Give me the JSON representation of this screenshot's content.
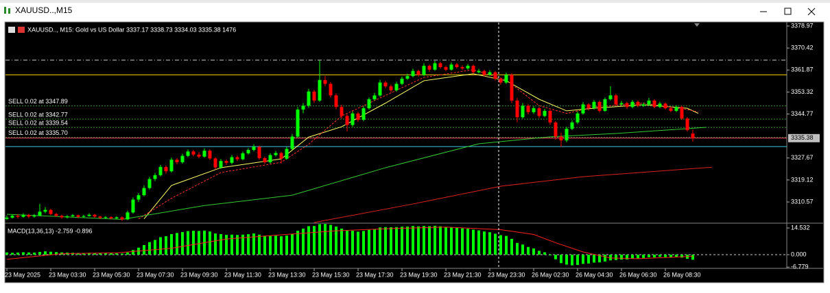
{
  "window_title": "XAUUSD..,M15",
  "chart_data": [
    {
      "type": "candlestick",
      "header": "XAUUSD.., M15:  Gold vs US Dollar  3337.17 3338.73 3334.03 3335.38  1476",
      "up_color": "#00ff00",
      "down_color": "#ff0000",
      "ylim": [
        3302.6,
        3380.3
      ],
      "yticks": [
        3378.97,
        3370.42,
        3361.87,
        3353.32,
        3344.77,
        3327.67,
        3319.12,
        3310.57
      ],
      "categories": [
        "23 May 2025",
        null,
        null,
        null,
        null,
        null,
        null,
        null,
        "23 May 03:30",
        null,
        null,
        null,
        null,
        null,
        null,
        null,
        "23 May 05:30",
        null,
        null,
        null,
        null,
        null,
        null,
        null,
        "23 May 07:30",
        null,
        null,
        null,
        null,
        null,
        null,
        null,
        "23 May 09:30",
        null,
        null,
        null,
        null,
        null,
        null,
        null,
        "23 May 11:30",
        null,
        null,
        null,
        null,
        null,
        null,
        null,
        "23 May 13:30",
        null,
        null,
        null,
        null,
        null,
        null,
        null,
        "23 May 15:30",
        null,
        null,
        null,
        null,
        null,
        null,
        null,
        "23 May 17:30",
        null,
        null,
        null,
        null,
        null,
        null,
        null,
        "23 May 19:30",
        null,
        null,
        null,
        null,
        null,
        null,
        null,
        "23 May 21:30",
        null,
        null,
        null,
        null,
        null,
        null,
        null,
        "23 May 23:30",
        null,
        null,
        null,
        null,
        null,
        null,
        null,
        "26 May 02:30",
        null,
        null,
        null,
        null,
        null,
        null,
        null,
        "26 May 04:30",
        null,
        null,
        null,
        null,
        null,
        null,
        null,
        "26 May 06:30",
        null,
        null,
        null,
        null,
        null,
        null,
        null,
        "26 May 08:30",
        null,
        null,
        null,
        null,
        null
      ],
      "ohlc": [
        [
          3304.0,
          3305.3,
          3303.6,
          3304.5
        ],
        [
          3304.5,
          3305.8,
          3304.1,
          3305.2
        ],
        [
          3305.2,
          3305.9,
          3304.2,
          3304.8
        ],
        [
          3304.8,
          3306.2,
          3304.5,
          3305.5
        ],
        [
          3305.5,
          3306.0,
          3304.3,
          3304.9
        ],
        [
          3304.9,
          3305.9,
          3304.5,
          3305.3
        ],
        [
          3305.3,
          3309.8,
          3305.0,
          3306.8
        ],
        [
          3306.8,
          3308.6,
          3306.2,
          3307.5
        ],
        [
          3307.5,
          3307.9,
          3305.5,
          3305.9
        ],
        [
          3305.9,
          3306.3,
          3304.8,
          3305.2
        ],
        [
          3305.2,
          3305.6,
          3304.1,
          3304.6
        ],
        [
          3304.6,
          3305.5,
          3304.2,
          3305.0
        ],
        [
          3305.0,
          3305.9,
          3304.7,
          3305.4
        ],
        [
          3305.4,
          3305.7,
          3304.3,
          3304.8
        ],
        [
          3304.8,
          3305.6,
          3304.5,
          3305.1
        ],
        [
          3305.1,
          3306.2,
          3304.9,
          3305.6
        ],
        [
          3305.6,
          3305.9,
          3304.5,
          3304.9
        ],
        [
          3304.9,
          3305.2,
          3303.9,
          3304.4
        ],
        [
          3304.4,
          3305.1,
          3304.0,
          3304.7
        ],
        [
          3304.7,
          3305.0,
          3303.8,
          3304.2
        ],
        [
          3304.2,
          3305.0,
          3303.9,
          3304.6
        ],
        [
          3304.6,
          3305.0,
          3303.2,
          3303.8
        ],
        [
          3303.8,
          3307.2,
          3303.5,
          3306.5
        ],
        [
          3306.5,
          3312.3,
          3306.0,
          3311.5
        ],
        [
          3311.5,
          3314.0,
          3310.6,
          3313.2
        ],
        [
          3313.2,
          3317.0,
          3312.8,
          3316.0
        ],
        [
          3316.0,
          3320.3,
          3315.4,
          3319.5
        ],
        [
          3319.5,
          3321.8,
          3318.7,
          3321.0
        ],
        [
          3321.0,
          3325.0,
          3320.5,
          3324.2
        ],
        [
          3324.2,
          3324.8,
          3321.6,
          3322.5
        ],
        [
          3322.5,
          3327.8,
          3322.0,
          3327.0
        ],
        [
          3327.0,
          3327.6,
          3325.2,
          3326.0
        ],
        [
          3326.0,
          3329.3,
          3325.5,
          3328.5
        ],
        [
          3328.5,
          3331.0,
          3328.0,
          3330.2
        ],
        [
          3330.2,
          3330.8,
          3328.3,
          3329.0
        ],
        [
          3329.0,
          3330.0,
          3327.6,
          3328.2
        ],
        [
          3328.2,
          3331.4,
          3327.8,
          3330.5
        ],
        [
          3330.5,
          3331.0,
          3326.9,
          3327.5
        ],
        [
          3327.5,
          3328.0,
          3323.2,
          3324.0
        ],
        [
          3324.0,
          3327.2,
          3323.5,
          3326.5
        ],
        [
          3326.5,
          3327.0,
          3325.0,
          3325.8
        ],
        [
          3325.8,
          3328.8,
          3325.2,
          3328.0
        ],
        [
          3328.0,
          3328.6,
          3326.5,
          3327.2
        ],
        [
          3327.2,
          3330.2,
          3326.8,
          3329.5
        ],
        [
          3329.5,
          3331.5,
          3329.0,
          3330.8
        ],
        [
          3330.8,
          3333.0,
          3330.2,
          3332.0
        ],
        [
          3332.0,
          3332.5,
          3327.0,
          3327.6
        ],
        [
          3327.6,
          3328.2,
          3325.4,
          3326.0
        ],
        [
          3326.0,
          3329.5,
          3325.5,
          3328.8
        ],
        [
          3328.8,
          3330.4,
          3328.2,
          3329.6
        ],
        [
          3329.6,
          3330.1,
          3325.6,
          3327.4
        ],
        [
          3327.4,
          3332.0,
          3327.0,
          3331.2
        ],
        [
          3331.2,
          3337.0,
          3330.8,
          3336.0
        ],
        [
          3336.0,
          3347.5,
          3335.5,
          3346.5
        ],
        [
          3346.5,
          3349.0,
          3345.0,
          3348.0
        ],
        [
          3348.0,
          3354.6,
          3347.2,
          3353.5
        ],
        [
          3353.5,
          3354.2,
          3349.1,
          3350.0
        ],
        [
          3350.0,
          3365.5,
          3349.5,
          3358.0
        ],
        [
          3358.0,
          3359.5,
          3355.6,
          3356.5
        ],
        [
          3356.5,
          3357.2,
          3351.2,
          3352.0
        ],
        [
          3352.0,
          3352.8,
          3346.6,
          3347.5
        ],
        [
          3347.5,
          3348.3,
          3343.0,
          3344.0
        ],
        [
          3344.0,
          3344.6,
          3338.0,
          3340.5
        ],
        [
          3340.5,
          3345.8,
          3339.8,
          3345.0
        ],
        [
          3345.0,
          3345.6,
          3341.7,
          3342.5
        ],
        [
          3342.5,
          3347.8,
          3342.0,
          3347.0
        ],
        [
          3347.0,
          3351.2,
          3346.5,
          3350.5
        ],
        [
          3350.5,
          3353.0,
          3350.0,
          3352.0
        ],
        [
          3352.0,
          3358.0,
          3351.5,
          3357.0
        ],
        [
          3357.0,
          3357.6,
          3354.8,
          3355.5
        ],
        [
          3355.5,
          3356.2,
          3353.2,
          3354.0
        ],
        [
          3354.0,
          3357.3,
          3353.5,
          3356.5
        ],
        [
          3356.5,
          3359.3,
          3356.0,
          3358.5
        ],
        [
          3358.5,
          3360.4,
          3358.0,
          3359.5
        ],
        [
          3359.5,
          3362.4,
          3359.0,
          3361.5
        ],
        [
          3361.5,
          3362.0,
          3359.3,
          3360.0
        ],
        [
          3360.0,
          3364.5,
          3359.5,
          3363.5
        ],
        [
          3363.5,
          3364.0,
          3361.2,
          3362.0
        ],
        [
          3362.0,
          3365.4,
          3361.5,
          3364.5
        ],
        [
          3364.5,
          3365.0,
          3362.4,
          3363.0
        ],
        [
          3363.0,
          3363.6,
          3361.3,
          3362.0
        ],
        [
          3362.0,
          3364.8,
          3361.6,
          3364.0
        ],
        [
          3364.0,
          3364.6,
          3362.5,
          3363.0
        ],
        [
          3363.0,
          3363.7,
          3361.8,
          3362.5
        ],
        [
          3362.5,
          3364.2,
          3362.0,
          3363.5
        ],
        [
          3363.5,
          3364.0,
          3360.4,
          3361.0
        ],
        [
          3361.0,
          3362.3,
          3360.5,
          3361.5
        ],
        [
          3361.5,
          3362.0,
          3359.4,
          3360.0
        ],
        [
          3360.0,
          3361.8,
          3359.6,
          3361.0
        ],
        [
          3361.0,
          3361.5,
          3357.8,
          3358.5
        ],
        [
          3358.5,
          3359.0,
          3356.2,
          3357.0
        ],
        [
          3357.0,
          3360.8,
          3356.5,
          3360.0
        ],
        [
          3360.0,
          3360.6,
          3349.0,
          3350.0
        ],
        [
          3350.0,
          3351.0,
          3341.5,
          3343.5
        ],
        [
          3343.5,
          3349.0,
          3343.0,
          3348.0
        ],
        [
          3348.0,
          3348.6,
          3344.6,
          3345.5
        ],
        [
          3345.5,
          3347.8,
          3344.8,
          3347.0
        ],
        [
          3347.0,
          3347.5,
          3343.2,
          3344.0
        ],
        [
          3344.0,
          3346.8,
          3343.5,
          3346.0
        ],
        [
          3346.0,
          3346.5,
          3340.6,
          3341.5
        ],
        [
          3341.5,
          3342.0,
          3334.8,
          3336.0
        ],
        [
          3336.0,
          3337.5,
          3332.0,
          3334.5
        ],
        [
          3334.5,
          3339.8,
          3333.8,
          3339.0
        ],
        [
          3339.0,
          3342.3,
          3338.5,
          3341.5
        ],
        [
          3341.5,
          3345.8,
          3340.8,
          3345.0
        ],
        [
          3345.0,
          3349.4,
          3344.5,
          3348.5
        ],
        [
          3348.5,
          3349.0,
          3346.2,
          3347.0
        ],
        [
          3347.0,
          3350.2,
          3346.5,
          3349.5
        ],
        [
          3349.5,
          3350.0,
          3345.3,
          3346.0
        ],
        [
          3346.0,
          3351.2,
          3345.6,
          3350.5
        ],
        [
          3350.5,
          3355.6,
          3350.0,
          3352.0
        ],
        [
          3352.0,
          3352.6,
          3347.8,
          3348.5
        ],
        [
          3348.5,
          3349.8,
          3348.0,
          3349.0
        ],
        [
          3349.0,
          3349.5,
          3346.8,
          3347.5
        ],
        [
          3347.5,
          3350.2,
          3347.0,
          3349.5
        ],
        [
          3349.5,
          3350.0,
          3347.4,
          3348.0
        ],
        [
          3348.0,
          3349.2,
          3347.5,
          3348.5
        ],
        [
          3348.5,
          3351.0,
          3348.0,
          3350.0
        ],
        [
          3350.0,
          3350.5,
          3347.0,
          3347.5
        ],
        [
          3347.5,
          3349.5,
          3347.0,
          3348.8
        ],
        [
          3348.8,
          3349.3,
          3346.5,
          3347.0
        ],
        [
          3347.0,
          3347.6,
          3345.4,
          3346.0
        ],
        [
          3346.0,
          3348.2,
          3345.5,
          3347.5
        ],
        [
          3347.5,
          3348.0,
          3342.4,
          3343.0
        ],
        [
          3343.0,
          3343.6,
          3338.0,
          3338.5
        ],
        [
          3337.17,
          3338.73,
          3334.03,
          3335.38
        ]
      ],
      "moving_averages": [
        {
          "color": "#ffff66",
          "dashed": false,
          "x": [
            25,
            30,
            39,
            50,
            55,
            61,
            69,
            76,
            85,
            91,
            97,
            102,
            107,
            116,
            124,
            126
          ],
          "values": [
            3304.0,
            3317.0,
            3323.9,
            3327.3,
            3335.8,
            3339.8,
            3349.0,
            3357.7,
            3360.4,
            3357.7,
            3350.5,
            3346.0,
            3347.0,
            3348.4,
            3347.0,
            3345.0
          ]
        },
        {
          "color": "#ff3030",
          "dashed": true,
          "x": [
            24,
            30,
            39,
            50,
            55,
            61,
            69,
            76,
            85,
            91,
            97,
            102,
            107,
            116,
            124,
            126
          ],
          "values": [
            3304.0,
            3312.0,
            3322.0,
            3326.0,
            3333.0,
            3344.0,
            3352.0,
            3359.0,
            3362.0,
            3358.0,
            3348.0,
            3345.0,
            3347.5,
            3349.0,
            3346.5,
            3345.5
          ]
        },
        {
          "color": "#33cc33",
          "dashed": false,
          "x": [
            0,
            21,
            36,
            52,
            69,
            86,
            99,
            111,
            127.5
          ],
          "values": [
            3305.8,
            3303.8,
            3309.2,
            3313.2,
            3323.9,
            3333.2,
            3335.9,
            3337.2,
            3339.6
          ]
        },
        {
          "color": "#e02020",
          "dashed": false,
          "x": [
            56,
            74,
            90,
            105,
            128.5
          ],
          "values": [
            3302.6,
            3309.8,
            3316.7,
            3320.4,
            3324.1
          ]
        }
      ],
      "orders": [
        {
          "label": "SELL 0.02 at 3347.89",
          "price": 3347.89
        },
        {
          "label": "SELL 0.02 at 3342.77",
          "price": 3342.77
        },
        {
          "label": "SELL 0.02 at 3339.54",
          "price": 3339.54
        },
        {
          "label": "SELL 0.02 at 3335.70",
          "price": 3335.7
        }
      ],
      "order_color": "#3a9a3a",
      "price_line_color": "#ff4060",
      "levels": [
        {
          "price": 3365.7,
          "color": "#cccccc",
          "style": "dashdot"
        },
        {
          "price": 3360.0,
          "color": "#ffd700",
          "style": "solid"
        },
        {
          "price": 3332.1,
          "color": "#40c8e0",
          "style": "solid"
        }
      ]
    },
    {
      "type": "macd",
      "header": "MACD(13,36,13) -2.759 -0.896",
      "color": "#00ff00",
      "signal_color": "#ff2020",
      "ylim": [
        -7.45,
        16.39
      ],
      "yticks": [
        14.532,
        {
          "value": 0,
          "label": "0.000"
        },
        -6.779
      ],
      "values": [
        1.2,
        1.0,
        1.1,
        1.3,
        1.2,
        1.1,
        1.5,
        1.8,
        1.6,
        1.4,
        1.2,
        1.1,
        1.0,
        0.9,
        0.9,
        1.0,
        0.9,
        0.8,
        0.8,
        0.7,
        0.7,
        0.6,
        1.2,
        2.5,
        3.8,
        5.2,
        6.8,
        8.0,
        9.5,
        10.0,
        11.2,
        11.8,
        12.3,
        12.8,
        13.0,
        12.9,
        13.1,
        12.6,
        11.5,
        11.2,
        10.8,
        10.9,
        10.7,
        10.9,
        11.1,
        11.5,
        10.9,
        10.3,
        10.2,
        10.3,
        10.0,
        10.4,
        11.2,
        13.0,
        14.2,
        15.5,
        15.6,
        16.6,
        16.7,
        16.2,
        15.3,
        14.2,
        13.0,
        13.0,
        12.5,
        12.9,
        13.5,
        13.9,
        14.8,
        15.0,
        14.9,
        15.0,
        15.2,
        15.3,
        15.6,
        15.4,
        15.6,
        15.5,
        15.7,
        15.4,
        15.1,
        15.0,
        14.7,
        14.3,
        14.1,
        13.6,
        13.2,
        12.6,
        12.2,
        11.4,
        10.6,
        10.2,
        8.6,
        6.4,
        5.5,
        4.2,
        3.4,
        2.1,
        1.3,
        -0.4,
        -2.5,
        -4.6,
        -5.4,
        -5.8,
        -5.6,
        -5.0,
        -4.8,
        -4.3,
        -4.2,
        -3.7,
        -3.1,
        -3.0,
        -2.7,
        -2.6,
        -2.2,
        -2.0,
        -1.8,
        -1.4,
        -1.5,
        -1.2,
        -1.3,
        -1.4,
        -1.2,
        -1.6,
        -2.2,
        -2.759
      ],
      "signal": {
        "x": [
          0,
          10,
          20,
          30,
          40,
          50,
          60,
          70,
          80,
          90,
          96,
          100,
          105,
          110,
          115,
          120,
          125
        ],
        "values": [
          -2.5,
          0.5,
          1.0,
          3.5,
          8.5,
          10.8,
          13.0,
          14.2,
          15.0,
          13.6,
          11.0,
          6.5,
          1.5,
          -1.8,
          -2.2,
          -1.6,
          -0.896
        ]
      }
    }
  ]
}
